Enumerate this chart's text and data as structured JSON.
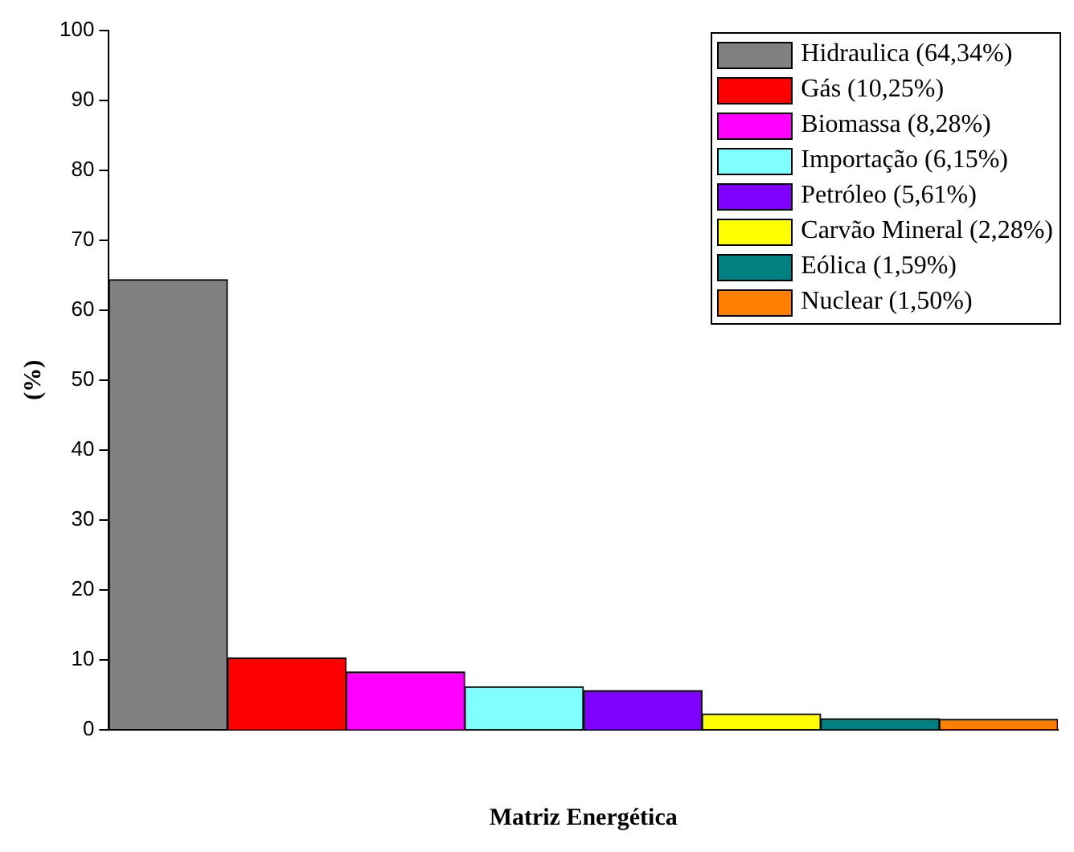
{
  "chart_data": {
    "type": "bar",
    "xlabel": "Matriz Energética",
    "ylabel": "(%)",
    "categories": [
      null,
      null,
      null,
      null,
      null,
      null,
      null,
      null
    ],
    "stacked": true,
    "ylim": [
      0,
      100
    ],
    "yticks": [
      0,
      10,
      20,
      30,
      40,
      50,
      60,
      70,
      80,
      90,
      100
    ],
    "grid": false,
    "tick_labels": "y",
    "legend": "top right",
    "series": [
      {
        "name": "Hidraulica (64,34%)",
        "color": "#808080",
        "values": [
          64.34,
          null,
          null,
          null,
          null,
          null,
          null,
          null
        ]
      },
      {
        "name": "Gás (10,25%)",
        "color": "#ff0000",
        "values": [
          null,
          10.25,
          null,
          null,
          null,
          null,
          null,
          null
        ]
      },
      {
        "name": "Biomassa (8,28%)",
        "color": "#ff00ff",
        "values": [
          null,
          null,
          8.28,
          null,
          null,
          null,
          null,
          null
        ]
      },
      {
        "name": "Importação (6,15%)",
        "color": "#80ffff",
        "values": [
          null,
          null,
          null,
          6.15,
          null,
          null,
          null,
          null
        ]
      },
      {
        "name": "Petróleo (5,61%)",
        "color": "#8000ff",
        "values": [
          null,
          null,
          null,
          null,
          5.61,
          null,
          null,
          null
        ]
      },
      {
        "name": "Carvão Mineral (2,28%)",
        "color": "#ffff00",
        "values": [
          null,
          null,
          null,
          null,
          null,
          2.28,
          null,
          null
        ]
      },
      {
        "name": "Eólica (1,59%)",
        "color": "#008080",
        "values": [
          null,
          null,
          null,
          null,
          null,
          null,
          1.59,
          null
        ]
      },
      {
        "name": "Nuclear (1,50%)",
        "color": "#ff8000",
        "values": [
          null,
          null,
          null,
          null,
          null,
          null,
          null,
          1.5
        ]
      }
    ]
  }
}
